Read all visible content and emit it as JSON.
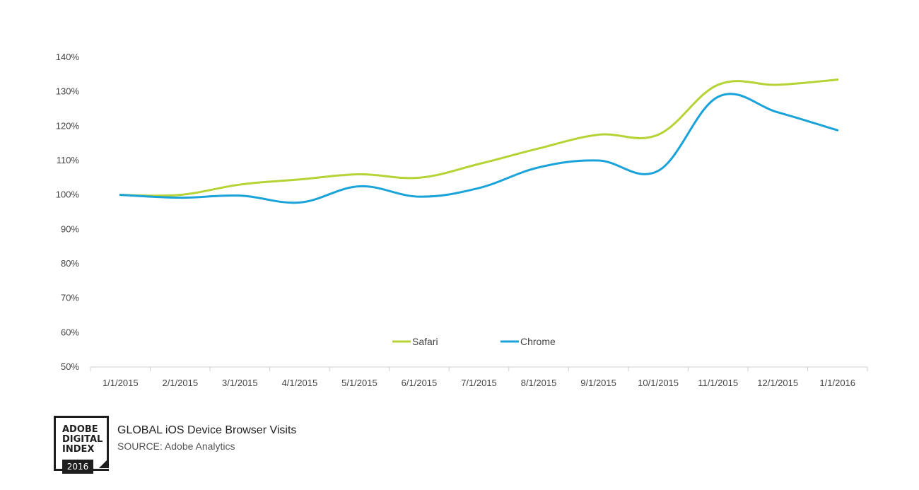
{
  "chart_data": {
    "type": "line",
    "title": "GLOBAL iOS Device Browser Visits",
    "source": "SOURCE: Adobe Analytics",
    "categories": [
      "1/1/2015",
      "2/1/2015",
      "3/1/2015",
      "4/1/2015",
      "5/1/2015",
      "6/1/2015",
      "7/1/2015",
      "8/1/2015",
      "9/1/2015",
      "10/1/2015",
      "11/1/2015",
      "12/1/2015",
      "1/1/2016"
    ],
    "y_ticks": [
      "50%",
      "60%",
      "70%",
      "80%",
      "90%",
      "100%",
      "110%",
      "120%",
      "130%",
      "140%"
    ],
    "ylim": [
      50,
      140
    ],
    "series": [
      {
        "name": "Safari",
        "color": "#b5d334",
        "values": [
          100,
          100,
          103,
          104.5,
          106,
          105,
          109,
          113.5,
          117.5,
          117.5,
          132,
          132,
          133.5
        ]
      },
      {
        "name": "Chrome",
        "color": "#1aa3d8",
        "values": [
          100,
          99.2,
          99.8,
          97.8,
          102.5,
          99.5,
          102,
          108,
          110,
          107,
          128.5,
          124,
          118.8
        ]
      }
    ],
    "legend_position": "bottom-center",
    "xlabel": "",
    "ylabel": ""
  },
  "branding": {
    "logo_lines": [
      "ADOBE",
      "DIGITAL",
      "INDEX"
    ],
    "logo_year": "2016"
  }
}
